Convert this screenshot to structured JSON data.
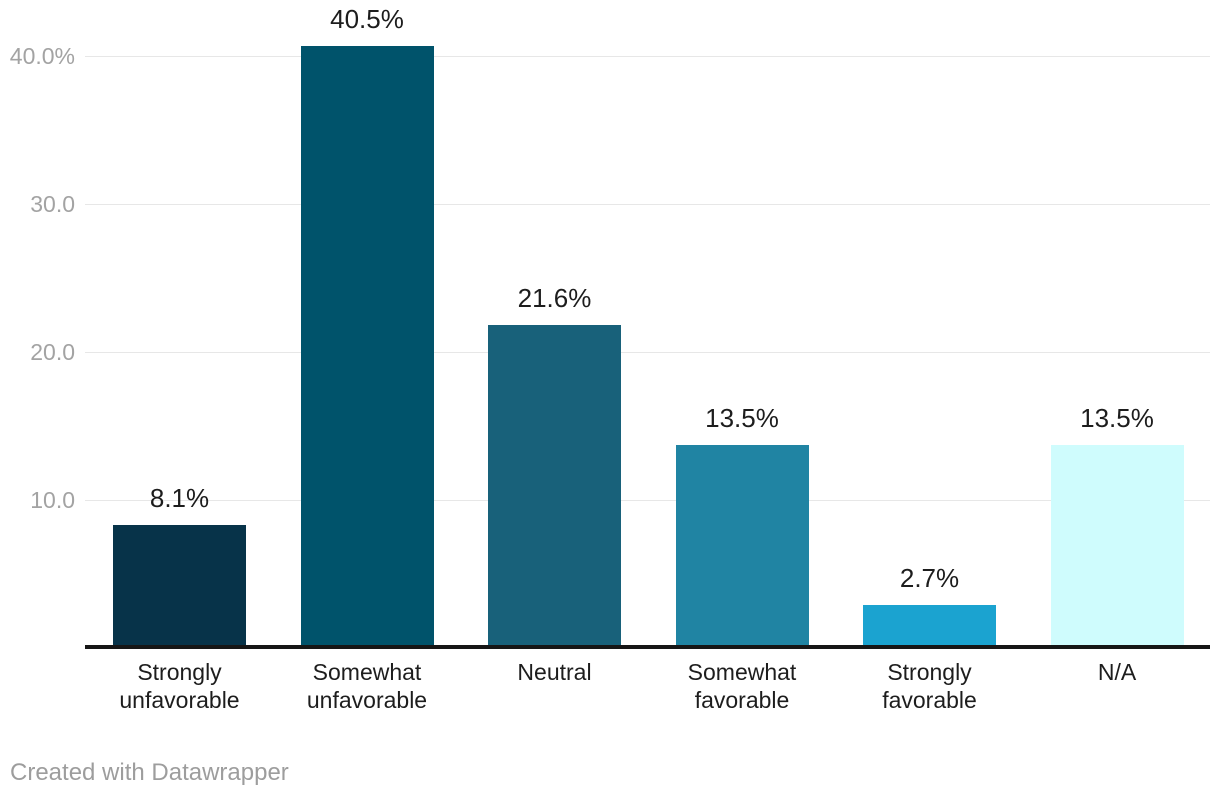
{
  "chart_data": {
    "type": "bar",
    "title": "",
    "xlabel": "",
    "ylabel": "",
    "categories": [
      "Strongly unfavorable",
      "Somewhat unfavorable",
      "Neutral",
      "Somewhat favorable",
      "Strongly favorable",
      "N/A"
    ],
    "category_lines": [
      [
        "Strongly",
        "unfavorable"
      ],
      [
        "Somewhat",
        "unfavorable"
      ],
      [
        "Neutral"
      ],
      [
        "Somewhat",
        "favorable"
      ],
      [
        "Strongly",
        "favorable"
      ],
      [
        "N/A"
      ]
    ],
    "values": [
      8.1,
      40.5,
      21.6,
      13.5,
      2.7,
      13.5
    ],
    "value_labels": [
      "8.1%",
      "40.5%",
      "21.6%",
      "13.5%",
      "2.7%",
      "13.5%"
    ],
    "bar_colors": [
      "#073349",
      "#00536b",
      "#18617a",
      "#2084a3",
      "#1ba3d0",
      "#cffcfd"
    ],
    "y_ticks": [
      {
        "value": 10,
        "label": "10.0"
      },
      {
        "value": 20,
        "label": "20.0"
      },
      {
        "value": 30,
        "label": "30.0"
      },
      {
        "value": 40,
        "label": "40.0%"
      }
    ],
    "ylim": [
      0,
      43.8
    ],
    "grid": true,
    "legend": "none"
  },
  "colors": {
    "background": "#ffffff",
    "gridline": "#e7e7e7",
    "axis_line": "#161616",
    "y_tick_text": "#a3a3a3",
    "value_label_text": "#1d1d1d",
    "x_tick_text": "#1d1d1d",
    "credit_text": "#9d9d9d"
  },
  "footer": {
    "credit": "Created with Datawrapper"
  }
}
